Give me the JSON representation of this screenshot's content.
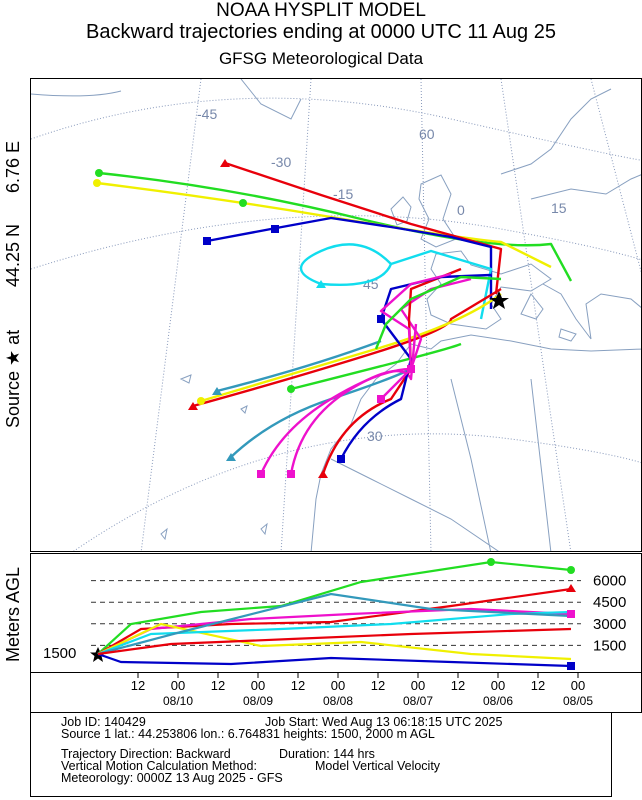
{
  "header": {
    "line1": "NOAA HYSPLIT MODEL",
    "line2": "Backward trajectories ending at 0000 UTC 11 Aug 25",
    "line3": "GFSG Meteorological Data"
  },
  "side_labels": {
    "source_label": "Source ★ at",
    "source_lat": "44.25 N",
    "source_lon": "6.76 E",
    "profile_axis": "Meters AGL"
  },
  "map": {
    "graticule_labels": [
      "-45",
      "-30",
      "-15",
      "0",
      "15",
      "60",
      "45",
      "30"
    ]
  },
  "profile": {
    "source_height": "1500",
    "levels": [
      "6000",
      "4500",
      "3000",
      "1500"
    ],
    "level_values": [
      6000,
      4500,
      3000,
      1500
    ],
    "ymax": 7500
  },
  "time_axis": {
    "hour_labels": [
      "12",
      "00",
      "12",
      "00",
      "12",
      "00",
      "12",
      "00",
      "12",
      "00",
      "12",
      "00"
    ],
    "date_labels": [
      "08/10",
      "08/09",
      "08/08",
      "08/07",
      "08/06",
      "08/05"
    ]
  },
  "info": {
    "job_id": "Job ID: 140429",
    "job_start": "Job Start: Wed Aug 13 06:18:15 UTC 2025",
    "source_line": "Source 1 lat.: 44.253806   lon.: 6.764831   heights: 1500, 2000 m AGL",
    "direction": "Trajectory Direction: Backward",
    "duration": "Duration: 144 hrs",
    "vertical_method": "Vertical Motion Calculation Method:",
    "vertical_value": "Model Vertical Velocity",
    "meteorology": "Meteorology: 0000Z 13 Aug 2025 - GFS"
  },
  "colors": {
    "red": "#e8000b",
    "blue": "#0000c8",
    "green": "#22dd22",
    "cyan": "#11ddee",
    "magenta": "#ee11cc",
    "yellow": "#f0f000",
    "teal": "#3399bb",
    "land_line": "#88a0c0",
    "grid_line": "#8899bb"
  },
  "legend_icons": [
    "star-icon",
    "triangle-marker-icon",
    "square-marker-icon",
    "circle-marker-icon"
  ]
}
